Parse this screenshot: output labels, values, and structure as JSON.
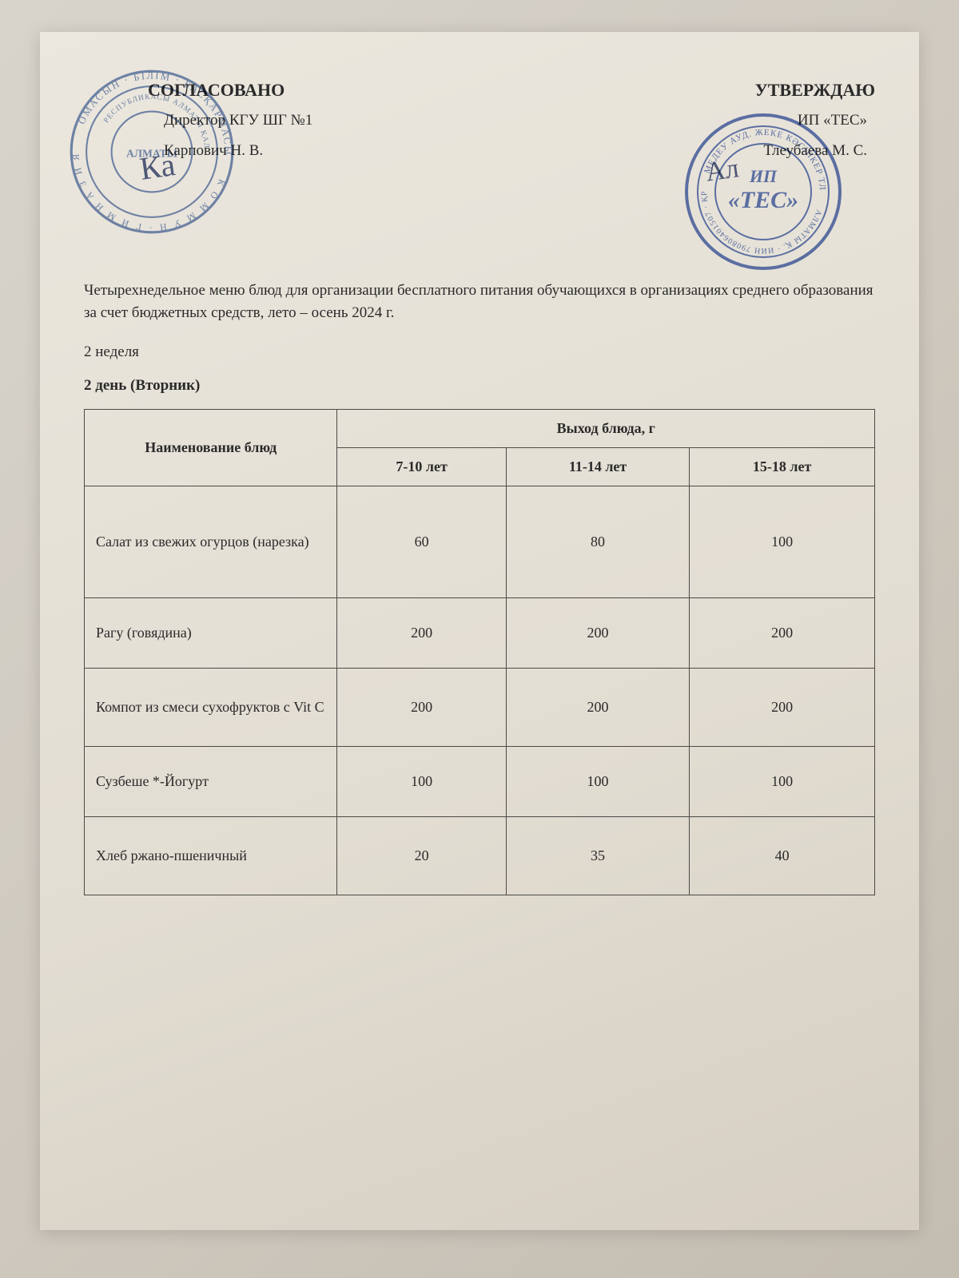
{
  "approvals": {
    "left": {
      "title": "СОГЛАСОВАНО",
      "line1": "Директор КГУ ШГ №1",
      "line2": "Карпович Н. В.",
      "stamp_color": "#4a6aa8",
      "stamp_inner_text": "АЛМАТЫ",
      "signature": "Ка"
    },
    "right": {
      "title": "УТВЕРЖДАЮ",
      "line1": "ИП «ТЕС»",
      "line2": "Тлеубаева М. С.",
      "stamp_color": "#3050a8",
      "stamp_center_line1": "ИП",
      "stamp_center_line2": "«ТЕС»",
      "signature": "Ал"
    }
  },
  "intro_text": "Четырехнедельное меню блюд для организации бесплатного питания обучающихся в организациях среднего образования за счет бюджетных средств, лето – осень 2024 г.",
  "week_label": "2 неделя",
  "day_label": "2 день (Вторник)",
  "table": {
    "col_name": "Наименование блюд",
    "col_portion": "Выход блюда, г",
    "age_headers": [
      "7-10 лет",
      "11-14 лет",
      "15-18 лет"
    ],
    "rows": [
      {
        "name": "Салат из свежих огурцов (нарезка)",
        "vals": [
          "60",
          "80",
          "100"
        ],
        "cls": "row-tall"
      },
      {
        "name": "Рагу (говядина)",
        "vals": [
          "200",
          "200",
          "200"
        ],
        "cls": "row-med"
      },
      {
        "name": "Компот из смеси сухофруктов с Vit С",
        "vals": [
          "200",
          "200",
          "200"
        ],
        "cls": "row-med2"
      },
      {
        "name": "Сузбеше *-Йогурт",
        "vals": [
          "100",
          "100",
          "100"
        ],
        "cls": "row-med"
      },
      {
        "name": "Хлеб ржано-пшеничный",
        "vals": [
          "20",
          "35",
          "40"
        ],
        "cls": "row-med2"
      }
    ]
  },
  "styling": {
    "page_bg": "#e2ddd2",
    "text_color": "#2a2a2a",
    "border_color": "#4a4a46",
    "font_family": "Times New Roman",
    "base_fontsize_pt": 14
  }
}
